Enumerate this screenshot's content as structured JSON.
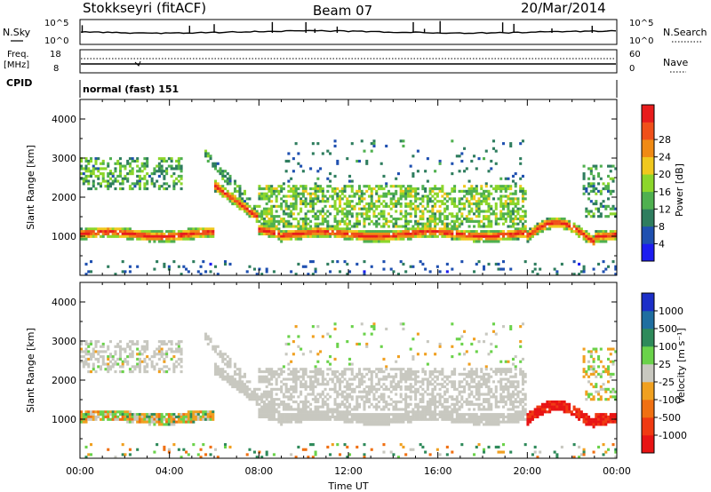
{
  "header": {
    "station": "Stokkseyri (fitACF)",
    "beam": "Beam 07",
    "date": "20/Mar/2014"
  },
  "strip_labels": {
    "nsky": "N.Sky",
    "freq_top": "Freq.",
    "freq_unit": "[MHz]",
    "cpid": "CPID",
    "nsearch": "N.Search",
    "nave": "Nave",
    "mode_text": "normal (fast) 151",
    "nsky_ticks": [
      "10^5",
      "10^0"
    ],
    "nsearch_ticks": [
      "10^5",
      "10^0"
    ],
    "freq_ticks": [
      "18",
      "8"
    ],
    "nave_ticks": [
      "60",
      "0"
    ]
  },
  "chart_data": [
    {
      "type": "heatmap",
      "panel": "power",
      "ylabel": "Slant Range [km]",
      "xlabel": "",
      "xlim": [
        "00:00",
        "24:00"
      ],
      "ylim": [
        0,
        4500
      ],
      "yticks": [
        "1000",
        "2000",
        "3000",
        "4000"
      ],
      "colorbar": {
        "label": "Power [dB]",
        "ticks": [
          "4",
          "8",
          "12",
          "16",
          "20",
          "24",
          "28"
        ],
        "colors": [
          "#1c1cf0",
          "#1f50b0",
          "#2e7d5e",
          "#4fb04f",
          "#8cd62b",
          "#f0c81e",
          "#f08a14",
          "#f0501a",
          "#e81c1c"
        ]
      },
      "features": [
        {
          "name": "E-region band",
          "start_hr": 0,
          "end_hr": 24,
          "range_km": 1050,
          "peak_db": 28
        },
        {
          "name": "F-region echoes",
          "start_hr": 0,
          "end_hr": 4.5,
          "range_km": 2600,
          "peak_db": 12
        },
        {
          "name": "mid-day F echoes",
          "start_hr": 8,
          "end_hr": 20,
          "range_km": 1900,
          "peak_db": 12
        }
      ]
    },
    {
      "type": "heatmap",
      "panel": "velocity",
      "ylabel": "Slant Range [km]",
      "xlabel": "Time UT",
      "xticks": [
        "00:00",
        "04:00",
        "08:00",
        "12:00",
        "16:00",
        "20:00",
        "00:00"
      ],
      "ylim": [
        0,
        4500
      ],
      "yticks": [
        "1000",
        "2000",
        "3000",
        "4000"
      ],
      "colorbar": {
        "label": "Velocity [m s⁻¹]",
        "ticks": [
          "1000",
          "500",
          "100",
          "25",
          "-25",
          "-100",
          "-500",
          "-1000"
        ],
        "colors": [
          "#1c2fc8",
          "#1f6ea0",
          "#2e8a5a",
          "#6ad24a",
          "#c8c8c0",
          "#f0a020",
          "#f07012",
          "#f03a12",
          "#e81414"
        ]
      },
      "features": [
        {
          "name": "ground scatter band",
          "start_hr": 6,
          "end_hr": 20,
          "range_km": 1400,
          "velocity": 0
        },
        {
          "name": "strong negative velocity",
          "start_hr": 20,
          "end_hr": 24,
          "range_km": 1100,
          "velocity": -1000
        }
      ]
    }
  ]
}
